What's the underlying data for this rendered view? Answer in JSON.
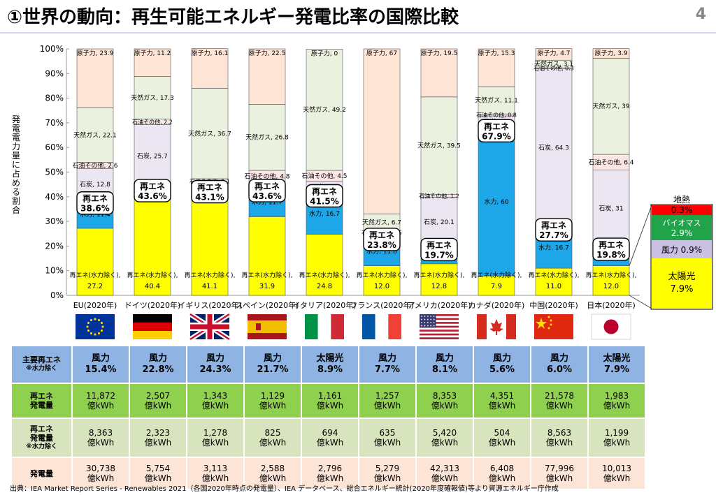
{
  "header": {
    "title": "①世界の動向：再生可能エネルギー発電比率の国際比較",
    "page_number": "4"
  },
  "chart_data": {
    "type": "bar",
    "stacked": true,
    "title": "",
    "ylabel": "発電電力量に占める割合",
    "ylim": [
      0,
      100
    ],
    "yticks": [
      "0%",
      "10%",
      "20%",
      "30%",
      "40%",
      "50%",
      "60%",
      "70%",
      "80%",
      "90%",
      "100%"
    ],
    "categories": [
      "EU(2020年)",
      "ドイツ(2020年)",
      "イギリス(2020年)",
      "スペイン(2020年)",
      "イタリア(2020年)",
      "フランス(2020年)",
      "アメリカ(2020年)",
      "カナダ(2020年)",
      "中国(2020年)",
      "日本(2020年)"
    ],
    "series": [
      {
        "name": "再エネ(水力除く)",
        "label": "再エネ(水力除く)",
        "color": "#ffff00",
        "values": [
          27.2,
          40.4,
          41.1,
          31.9,
          24.8,
          12.0,
          12.8,
          7.9,
          11.0,
          12.0
        ]
      },
      {
        "name": "水力",
        "label": "水力",
        "color": "#1ea7e8",
        "values": [
          11.4,
          3.2,
          2.1,
          11.7,
          16.7,
          11.8,
          6.9,
          60.0,
          16.7,
          7.8
        ]
      },
      {
        "name": "石炭",
        "label": "石炭",
        "color": "#ece6f3",
        "values": [
          12.8,
          25.7,
          2.0,
          2.3,
          4.7,
          1.0,
          20.1,
          4.9,
          64.3,
          31
        ]
      },
      {
        "name": "石油その他",
        "label": "石油その他",
        "color": "#fbe6e6",
        "values": [
          2.6,
          2.2,
          2.1,
          4.8,
          4.5,
          1.5,
          1.2,
          0.8,
          0.3,
          6.4
        ]
      },
      {
        "name": "天然ガス",
        "label": "天然ガス",
        "color": "#ebf1df",
        "values": [
          22.1,
          17.3,
          36.7,
          26.8,
          49.2,
          6.7,
          39.5,
          11.1,
          3.1,
          39
        ]
      },
      {
        "name": "原子力",
        "label": "原子力",
        "color": "#fde4d4",
        "values": [
          23.9,
          11.2,
          16.1,
          22.5,
          0.0,
          67.0,
          19.5,
          15.3,
          4.7,
          3.9
        ]
      }
    ],
    "renewable_callout": {
      "label": "再エネ",
      "values": [
        "38.6%",
        "43.6%",
        "43.1%",
        "43.6%",
        "41.5%",
        "23.8%",
        "19.7%",
        "67.9%",
        "27.7%",
        "19.8%"
      ]
    },
    "japan_breakdown": {
      "title": "地熱",
      "items": [
        {
          "label": "0.3%",
          "color": "#ff0000"
        },
        {
          "label": "バイオマス",
          "value": "2.9%",
          "color": "#21a34a"
        },
        {
          "label": "風力",
          "value": "0.9%",
          "color": "#c9c0e3"
        },
        {
          "label": "太陽光",
          "value": "7.9%",
          "color": "#ffff00"
        }
      ]
    }
  },
  "flags": [
    "eu",
    "de",
    "gb",
    "es",
    "it",
    "fr",
    "us",
    "ca",
    "cn",
    "jp"
  ],
  "table": {
    "rows": [
      {
        "header": "主要再エネ",
        "sub": "※水力除く",
        "cells": [
          [
            "風力",
            "15.4%"
          ],
          [
            "風力",
            "22.8%"
          ],
          [
            "風力",
            "24.3%"
          ],
          [
            "風力",
            "21.7%"
          ],
          [
            "太陽光",
            "8.9%"
          ],
          [
            "風力",
            "7.7%"
          ],
          [
            "風力",
            "8.1%"
          ],
          [
            "風力",
            "5.6%"
          ],
          [
            "風力",
            "6.0%"
          ],
          [
            "太陽光",
            "7.9%"
          ]
        ]
      },
      {
        "header": "再エネ",
        "header2": "発電量",
        "cells": [
          [
            "11,872",
            "億kWh"
          ],
          [
            "2,507",
            "億kWh"
          ],
          [
            "1,343",
            "億kWh"
          ],
          [
            "1,129",
            "億kWh"
          ],
          [
            "1,161",
            "億kWh"
          ],
          [
            "1,257",
            "億kWh"
          ],
          [
            "8,353",
            "億kWh"
          ],
          [
            "4,351",
            "億kWh"
          ],
          [
            "21,578",
            "億kWh"
          ],
          [
            "1,983",
            "億kWh"
          ]
        ]
      },
      {
        "header": "再エネ",
        "header2": "発電量",
        "sub": "※水力除く",
        "cells": [
          [
            "8,363",
            "億kWh"
          ],
          [
            "2,323",
            "億kWh"
          ],
          [
            "1,278",
            "億kWh"
          ],
          [
            "825",
            "億kWh"
          ],
          [
            "694",
            "億kWh"
          ],
          [
            "635",
            "億kWh"
          ],
          [
            "5,420",
            "億kWh"
          ],
          [
            "504",
            "億kWh"
          ],
          [
            "8,563",
            "億kWh"
          ],
          [
            "1,199",
            "億kWh"
          ]
        ]
      },
      {
        "header": "発電量",
        "cells": [
          [
            "30,738",
            "億kWh"
          ],
          [
            "5,754",
            "億kWh"
          ],
          [
            "3,113",
            "億kWh"
          ],
          [
            "2,588",
            "億kWh"
          ],
          [
            "2,796",
            "億kWh"
          ],
          [
            "5,279",
            "億kWh"
          ],
          [
            "42,313",
            "億kWh"
          ],
          [
            "6,408",
            "億kWh"
          ],
          [
            "77,996",
            "億kWh"
          ],
          [
            "10,013",
            "億kWh"
          ]
        ]
      }
    ]
  },
  "footer": "出典：IEA Market Report Series - Renewables 2021（各国2020年時点の発電量）、IEA データベース、総合エネルギー統計(2020年度確報値)等より資源エネルギー庁作成"
}
